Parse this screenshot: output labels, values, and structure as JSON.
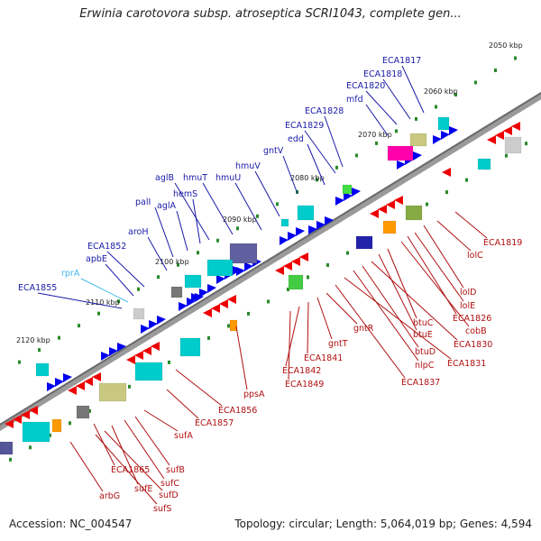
{
  "title": "Erwinia carotovora subsp. atroseptica SCRI1043, complete gen...",
  "footer": {
    "accession": "Accession: NC_004547",
    "summary": "Topology: circular; Length: 5,064,019 bp; Genes: 4,594"
  },
  "ticks": [
    "2050 kbp",
    "2060 kbp",
    "2070 kbp",
    "2080 kbp",
    "2090 kbp",
    "2100 kbp",
    "2110 kbp",
    "2120 kbp"
  ],
  "colors": {
    "backbone": "#7a7a7a",
    "forward_gene": "#0000ee",
    "reverse_gene": "#ee0000",
    "forward_label": "#1a1aa8",
    "reverse_label": "#b01010",
    "rna_label": "#44bbee",
    "tick_mark": "#2a8a2a",
    "cds_box": "#00cccc",
    "khaki_box": "#c8c880"
  },
  "labels_top": [
    "ECA1817",
    "ECA1818",
    "ECA1820",
    "mfd",
    "ECA1828",
    "ECA1829",
    "edd",
    "gntV",
    "hmuV",
    "hmuU",
    "hmuT",
    "aglB",
    "hemS",
    "aglA",
    "palI",
    "aroH",
    "ECA1852",
    "apbE",
    "rprA",
    "ECA1855"
  ],
  "labels_bottom": [
    "ECA1819",
    "lolC",
    "lolD",
    "lolE",
    "ECA1826",
    "cobB",
    "btuC",
    "btuE",
    "ECA1830",
    "btuD",
    "nlpC",
    "ECA1831",
    "ECA1837",
    "gntR",
    "gntT",
    "ECA1841",
    "ECA1842",
    "ECA1849",
    "ppsA",
    "ECA1856",
    "ECA1857",
    "sufA",
    "sufB",
    "ECA1865",
    "sufC",
    "sufE",
    "sufD",
    "arbG",
    "sufS"
  ]
}
